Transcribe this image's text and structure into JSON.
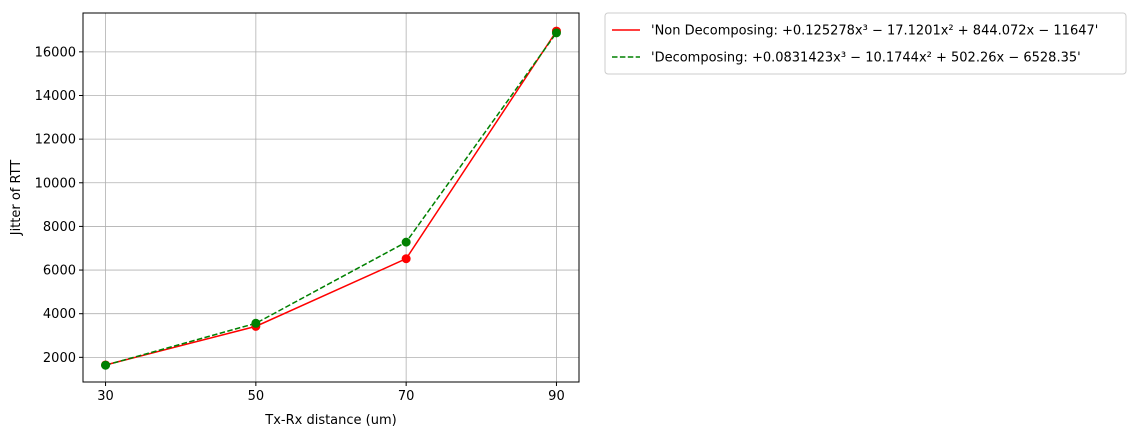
{
  "chart_data": {
    "type": "line",
    "xlabel": "Tx-Rx distance (um)",
    "ylabel": "Jitter of RTT",
    "x": [
      30,
      50,
      70,
      90
    ],
    "xticks": [
      30,
      50,
      70,
      90
    ],
    "xtick_labels": [
      "30",
      "50",
      "70",
      "90"
    ],
    "xlim": [
      27,
      93
    ],
    "yticks": [
      2000,
      4000,
      6000,
      8000,
      10000,
      12000,
      14000,
      16000
    ],
    "ytick_labels": [
      "2000",
      "4000",
      "6000",
      "8000",
      "10000",
      "12000",
      "14000",
      "16000"
    ],
    "ylim": [
      870,
      17780
    ],
    "grid": true,
    "legend_position": "outside-upper-right",
    "series": [
      {
        "name": "'Non Decomposing: +0.125278x³ − 17.1201x² + 844.072x − 11647'",
        "values": [
          1650,
          3420,
          6520,
          16950
        ],
        "color": "#ff0000",
        "linestyle": "solid"
      },
      {
        "name": "'Decomposing: +0.0831423x³ − 10.1744x² + 502.26x − 6528.35'",
        "values": [
          1640,
          3560,
          7280,
          16870
        ],
        "color": "#008000",
        "linestyle": "dashed"
      }
    ]
  }
}
